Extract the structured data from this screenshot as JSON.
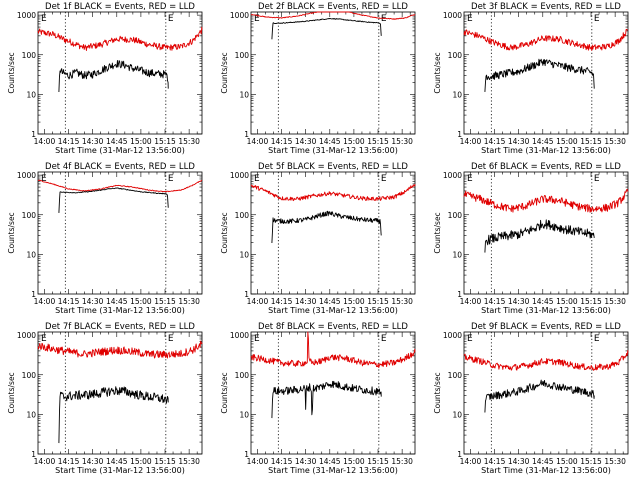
{
  "figure": {
    "title_template": "{det} BLACK = Events, RED = LLD",
    "xlabel": "Start Time (31-Mar-12 13:56:00)",
    "ylabel": "Counts/sec",
    "x_tick_labels": [
      "14:00",
      "14:15",
      "14:30",
      "14:45",
      "15:00",
      "15:15",
      "15:30"
    ],
    "y_tick_labels": [
      "1",
      "10",
      "100",
      "1000"
    ],
    "corner_marker": "E",
    "colors": {
      "events": "#000000",
      "lld": "#e00000",
      "axes": "#000000"
    }
  },
  "chart_data": [
    {
      "type": "line",
      "detector": "Det 1f",
      "title": "Det 1f BLACK = Events, RED = LLD",
      "xlabel": "Start Time (31-Mar-12 13:56:00)",
      "ylabel": "Counts/sec",
      "yscale": "log",
      "x_units": "minutes after 14:00",
      "xlim": [
        -4,
        98
      ],
      "ylim": [
        1,
        1200
      ],
      "x_ticks": [
        0,
        15,
        30,
        45,
        60,
        75,
        90
      ],
      "x_tick_labels": [
        "14:00",
        "14:15",
        "14:30",
        "14:45",
        "15:00",
        "15:15",
        "15:30"
      ],
      "y_ticks": [
        1,
        10,
        100,
        1000
      ],
      "y_tick_labels": [
        "1",
        "10",
        "100",
        "1000"
      ],
      "vlines": [
        13,
        75.5
      ],
      "series": [
        {
          "name": "LLD",
          "color": "#e00000",
          "noise": 0.08,
          "x": [
            -4,
            5,
            15,
            25,
            35,
            45,
            55,
            65,
            75,
            85,
            92,
            98
          ],
          "y": [
            380,
            330,
            220,
            150,
            180,
            250,
            240,
            180,
            150,
            160,
            220,
            420
          ]
        },
        {
          "name": "Events",
          "color": "#000000",
          "noise": 0.1,
          "x": [
            9,
            9.6,
            11,
            15,
            20,
            25,
            30,
            35,
            40,
            45,
            50,
            55,
            60,
            65,
            70,
            75,
            76.5,
            77
          ],
          "y": [
            10,
            45,
            35,
            30,
            35,
            30,
            32,
            40,
            50,
            60,
            55,
            45,
            40,
            35,
            33,
            32,
            30,
            14
          ]
        }
      ]
    },
    {
      "type": "line",
      "detector": "Det 2f",
      "title": "Det 2f BLACK = Events, RED = LLD",
      "xlabel": "Start Time (31-Mar-12 13:56:00)",
      "ylabel": "Counts/sec",
      "yscale": "log",
      "x_units": "minutes after 14:00",
      "xlim": [
        -4,
        98
      ],
      "ylim": [
        1,
        1200
      ],
      "x_ticks": [
        0,
        15,
        30,
        45,
        60,
        75,
        90
      ],
      "x_tick_labels": [
        "14:00",
        "14:15",
        "14:30",
        "14:45",
        "15:00",
        "15:15",
        "15:30"
      ],
      "y_ticks": [
        1,
        10,
        100,
        1000
      ],
      "y_tick_labels": [
        "1",
        "10",
        "100",
        "1000"
      ],
      "vlines": [
        13,
        75.5
      ],
      "series": [
        {
          "name": "LLD",
          "color": "#e00000",
          "noise": 0.01,
          "x": [
            -4,
            5,
            15,
            25,
            35,
            45,
            55,
            65,
            75,
            85,
            92,
            98
          ],
          "y": [
            1050,
            900,
            850,
            950,
            1150,
            1350,
            1250,
            1000,
            850,
            800,
            850,
            1050
          ]
        },
        {
          "name": "Events",
          "color": "#000000",
          "noise": 0.01,
          "x": [
            9,
            9.6,
            12,
            20,
            30,
            40,
            45,
            50,
            60,
            70,
            75,
            76.5,
            77
          ],
          "y": [
            250,
            640,
            620,
            650,
            700,
            780,
            820,
            800,
            720,
            660,
            640,
            620,
            300
          ]
        }
      ]
    },
    {
      "type": "line",
      "detector": "Det 3f",
      "title": "Det 3f BLACK = Events, RED = LLD",
      "xlabel": "Start Time (31-Mar-12 13:56:00)",
      "ylabel": "Counts/sec",
      "yscale": "log",
      "x_units": "minutes after 14:00",
      "xlim": [
        -4,
        98
      ],
      "ylim": [
        1,
        1200
      ],
      "x_ticks": [
        0,
        15,
        30,
        45,
        60,
        75,
        90
      ],
      "x_tick_labels": [
        "14:00",
        "14:15",
        "14:30",
        "14:45",
        "15:00",
        "15:15",
        "15:30"
      ],
      "y_ticks": [
        1,
        10,
        100,
        1000
      ],
      "y_tick_labels": [
        "1",
        "10",
        "100",
        "1000"
      ],
      "vlines": [
        13,
        75.5
      ],
      "series": [
        {
          "name": "LLD",
          "color": "#e00000",
          "noise": 0.08,
          "x": [
            -4,
            5,
            15,
            25,
            35,
            45,
            55,
            65,
            75,
            85,
            92,
            98
          ],
          "y": [
            380,
            300,
            200,
            150,
            180,
            260,
            250,
            190,
            150,
            160,
            220,
            420
          ]
        },
        {
          "name": "Events",
          "color": "#000000",
          "noise": 0.1,
          "x": [
            9,
            9.6,
            12,
            20,
            30,
            40,
            45,
            50,
            60,
            70,
            75,
            76.5,
            77
          ],
          "y": [
            12,
            30,
            28,
            32,
            38,
            55,
            68,
            60,
            48,
            40,
            36,
            32,
            14
          ]
        }
      ]
    },
    {
      "type": "line",
      "detector": "Det 4f",
      "title": "Det 4f BLACK = Events, RED = LLD",
      "xlabel": "Start Time (31-Mar-12 13:56:00)",
      "ylabel": "Counts/sec",
      "yscale": "log",
      "x_units": "minutes after 14:00",
      "xlim": [
        -4,
        98
      ],
      "ylim": [
        1,
        1200
      ],
      "x_ticks": [
        0,
        15,
        30,
        45,
        60,
        75,
        90
      ],
      "x_tick_labels": [
        "14:00",
        "14:15",
        "14:30",
        "14:45",
        "15:00",
        "15:15",
        "15:30"
      ],
      "y_ticks": [
        1,
        10,
        100,
        1000
      ],
      "y_tick_labels": [
        "1",
        "10",
        "100",
        "1000"
      ],
      "vlines": [
        13,
        75.5
      ],
      "series": [
        {
          "name": "LLD",
          "color": "#e00000",
          "noise": 0.01,
          "x": [
            -4,
            5,
            15,
            25,
            35,
            45,
            55,
            65,
            75,
            85,
            92,
            98
          ],
          "y": [
            750,
            600,
            450,
            400,
            450,
            550,
            500,
            420,
            380,
            420,
            550,
            750
          ]
        },
        {
          "name": "Events",
          "color": "#000000",
          "noise": 0.01,
          "x": [
            9,
            9.6,
            12,
            20,
            30,
            40,
            45,
            50,
            60,
            70,
            75,
            76.5,
            77
          ],
          "y": [
            110,
            380,
            370,
            360,
            390,
            450,
            470,
            440,
            380,
            350,
            340,
            330,
            150
          ]
        }
      ]
    },
    {
      "type": "line",
      "detector": "Det 5f",
      "title": "Det 5f BLACK = Events, RED = LLD",
      "xlabel": "Start Time (31-Mar-12 13:56:00)",
      "ylabel": "Counts/sec",
      "yscale": "log",
      "x_units": "minutes after 14:00",
      "xlim": [
        -4,
        98
      ],
      "ylim": [
        1,
        1200
      ],
      "x_ticks": [
        0,
        15,
        30,
        45,
        60,
        75,
        90
      ],
      "x_tick_labels": [
        "14:00",
        "14:15",
        "14:30",
        "14:45",
        "15:00",
        "15:15",
        "15:30"
      ],
      "y_ticks": [
        1,
        10,
        100,
        1000
      ],
      "y_tick_labels": [
        "1",
        "10",
        "100",
        "1000"
      ],
      "vlines": [
        13,
        75.5
      ],
      "series": [
        {
          "name": "LLD",
          "color": "#e00000",
          "noise": 0.05,
          "x": [
            -4,
            5,
            15,
            25,
            35,
            45,
            55,
            65,
            75,
            85,
            92,
            98
          ],
          "y": [
            550,
            400,
            260,
            250,
            300,
            350,
            300,
            260,
            250,
            280,
            380,
            600
          ]
        },
        {
          "name": "Events",
          "color": "#000000",
          "noise": 0.06,
          "x": [
            9,
            9.6,
            12,
            20,
            30,
            40,
            45,
            50,
            60,
            70,
            75,
            76.5,
            77
          ],
          "y": [
            20,
            75,
            70,
            68,
            75,
            100,
            110,
            95,
            80,
            72,
            70,
            68,
            30
          ]
        }
      ]
    },
    {
      "type": "line",
      "detector": "Det 6f",
      "title": "Det 6f BLACK = Events, RED = LLD",
      "xlabel": "Start Time (31-Mar-12 13:56:00)",
      "ylabel": "Counts/sec",
      "yscale": "log",
      "x_units": "minutes after 14:00",
      "xlim": [
        -4,
        98
      ],
      "ylim": [
        1,
        1200
      ],
      "x_ticks": [
        0,
        15,
        30,
        45,
        60,
        75,
        90
      ],
      "x_tick_labels": [
        "14:00",
        "14:15",
        "14:30",
        "14:45",
        "15:00",
        "15:15",
        "15:30"
      ],
      "y_ticks": [
        1,
        10,
        100,
        1000
      ],
      "y_tick_labels": [
        "1",
        "10",
        "100",
        "1000"
      ],
      "vlines": [
        13,
        75.5
      ],
      "series": [
        {
          "name": "LLD",
          "color": "#e00000",
          "noise": 0.1,
          "x": [
            -4,
            5,
            15,
            25,
            35,
            45,
            55,
            65,
            75,
            85,
            92,
            98
          ],
          "y": [
            320,
            260,
            180,
            140,
            170,
            250,
            230,
            170,
            140,
            150,
            200,
            380
          ]
        },
        {
          "name": "Events",
          "color": "#000000",
          "noise": 0.12,
          "x": [
            9,
            9.6,
            12,
            20,
            30,
            40,
            45,
            50,
            60,
            70,
            75,
            76.5,
            77
          ],
          "y": [
            12,
            22,
            24,
            28,
            32,
            45,
            60,
            55,
            42,
            35,
            32,
            30,
            26
          ]
        }
      ]
    },
    {
      "type": "line",
      "detector": "Det 7f",
      "title": "Det 7f BLACK = Events, RED = LLD",
      "xlabel": "Start Time (31-Mar-12 13:56:00)",
      "ylabel": "Counts/sec",
      "yscale": "log",
      "x_units": "minutes after 14:00",
      "xlim": [
        -4,
        98
      ],
      "ylim": [
        1,
        1200
      ],
      "x_ticks": [
        0,
        15,
        30,
        45,
        60,
        75,
        90
      ],
      "x_tick_labels": [
        "14:00",
        "14:15",
        "14:30",
        "14:45",
        "15:00",
        "15:15",
        "15:30"
      ],
      "y_ticks": [
        1,
        10,
        100,
        1000
      ],
      "y_tick_labels": [
        "1",
        "10",
        "100",
        "1000"
      ],
      "vlines": [
        13,
        75.5
      ],
      "series": [
        {
          "name": "LLD",
          "color": "#e00000",
          "noise": 0.1,
          "x": [
            -4,
            5,
            15,
            25,
            35,
            45,
            55,
            65,
            75,
            85,
            92,
            98
          ],
          "y": [
            550,
            450,
            380,
            330,
            380,
            420,
            380,
            330,
            320,
            340,
            420,
            600
          ]
        },
        {
          "name": "Events",
          "color": "#000000",
          "noise": 0.12,
          "x": [
            9,
            9.6,
            12,
            20,
            30,
            40,
            45,
            50,
            60,
            70,
            75,
            76.5,
            77
          ],
          "y": [
            2,
            30,
            28,
            30,
            32,
            38,
            40,
            38,
            30,
            26,
            24,
            22,
            20
          ]
        }
      ]
    },
    {
      "type": "line",
      "detector": "Det 8f",
      "title": "Det 8f BLACK = Events, RED = LLD",
      "xlabel": "Start Time (31-Mar-12 13:56:00)",
      "ylabel": "Counts/sec",
      "yscale": "log",
      "x_units": "minutes after 14:00",
      "xlim": [
        -4,
        98
      ],
      "ylim": [
        1,
        1200
      ],
      "x_ticks": [
        0,
        15,
        30,
        45,
        60,
        75,
        90
      ],
      "x_tick_labels": [
        "14:00",
        "14:15",
        "14:30",
        "14:45",
        "15:00",
        "15:15",
        "15:30"
      ],
      "y_ticks": [
        1,
        10,
        100,
        1000
      ],
      "y_tick_labels": [
        "1",
        "10",
        "100",
        "1000"
      ],
      "vlines": [
        13,
        75.5
      ],
      "series": [
        {
          "name": "LLD",
          "color": "#e00000",
          "noise": 0.08,
          "x": [
            -4,
            5,
            15,
            25,
            30,
            31,
            31.3,
            31.6,
            32,
            34,
            40,
            45,
            55,
            65,
            75,
            85,
            92,
            98
          ],
          "y": [
            280,
            240,
            200,
            190,
            200,
            220,
            1200,
            1200,
            230,
            200,
            220,
            280,
            260,
            200,
            180,
            200,
            260,
            380
          ]
        },
        {
          "name": "Events",
          "color": "#000000",
          "noise": 0.1,
          "x": [
            9,
            9.6,
            12,
            20,
            25,
            29.8,
            30,
            30.4,
            33.4,
            34,
            34.6,
            40,
            45,
            50,
            60,
            70,
            75,
            76.5,
            77
          ],
          "y": [
            10,
            40,
            38,
            40,
            42,
            45,
            12,
            45,
            50,
            7,
            45,
            50,
            60,
            55,
            45,
            40,
            38,
            35,
            28
          ]
        }
      ]
    },
    {
      "type": "line",
      "detector": "Det 9f",
      "title": "Det 9f BLACK = Events, RED = LLD",
      "xlabel": "Start Time (31-Mar-12 13:56:00)",
      "ylabel": "Counts/sec",
      "yscale": "log",
      "x_units": "minutes after 14:00",
      "xlim": [
        -4,
        98
      ],
      "ylim": [
        1,
        1200
      ],
      "x_ticks": [
        0,
        15,
        30,
        45,
        60,
        75,
        90
      ],
      "x_tick_labels": [
        "14:00",
        "14:15",
        "14:30",
        "14:45",
        "15:00",
        "15:15",
        "15:30"
      ],
      "y_ticks": [
        1,
        10,
        100,
        1000
      ],
      "y_tick_labels": [
        "1",
        "10",
        "100",
        "1000"
      ],
      "vlines": [
        13,
        75.5
      ],
      "series": [
        {
          "name": "LLD",
          "color": "#e00000",
          "noise": 0.08,
          "x": [
            -4,
            5,
            15,
            25,
            35,
            45,
            55,
            65,
            75,
            85,
            92,
            98
          ],
          "y": [
            280,
            230,
            170,
            150,
            170,
            220,
            210,
            170,
            150,
            160,
            200,
            360
          ]
        },
        {
          "name": "Events",
          "color": "#000000",
          "noise": 0.1,
          "x": [
            9,
            9.6,
            12,
            20,
            30,
            40,
            45,
            50,
            60,
            70,
            75,
            76.5,
            77
          ],
          "y": [
            14,
            26,
            28,
            32,
            38,
            52,
            62,
            56,
            45,
            38,
            34,
            32,
            30
          ]
        }
      ]
    }
  ]
}
